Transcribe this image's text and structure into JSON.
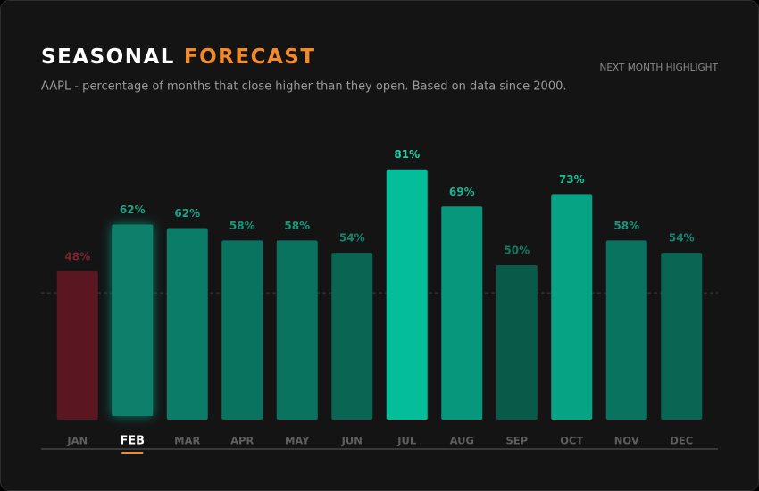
{
  "chart_data": {
    "type": "bar",
    "title": "SEASONAL",
    "title_highlight": "FORECAST",
    "subtitle": "AAPL - percentage of months that close higher than they open. Based on data since 2000.",
    "annotation": "NEXT MONTH HIGHLIGHT",
    "categories": [
      "JAN",
      "FEB",
      "MAR",
      "APR",
      "MAY",
      "JUN",
      "JUL",
      "AUG",
      "SEP",
      "OCT",
      "NOV",
      "DEC"
    ],
    "values": [
      48,
      62,
      62,
      58,
      58,
      54,
      81,
      69,
      50,
      73,
      58,
      54
    ],
    "value_labels": [
      "48%",
      "62%",
      "62%",
      "58%",
      "58%",
      "54%",
      "81%",
      "69%",
      "50%",
      "73%",
      "58%",
      "54%"
    ],
    "colors": [
      "#5a1621",
      "#0e7f6a",
      "#0b7c67",
      "#0a735f",
      "#0a735f",
      "#0a6552",
      "#04be99",
      "#07977c",
      "#0a5a49",
      "#06a385",
      "#0a735f",
      "#0a6552"
    ],
    "label_colors": [
      "#7c2233",
      "#1aa386",
      "#1aa386",
      "#17977c",
      "#17977c",
      "#138770",
      "#1fd3ab",
      "#16b591",
      "#107a62",
      "#13c199",
      "#17977c",
      "#138770"
    ],
    "highlight_index": 1,
    "reference_line": 41,
    "ylim": [
      0,
      100
    ]
  }
}
